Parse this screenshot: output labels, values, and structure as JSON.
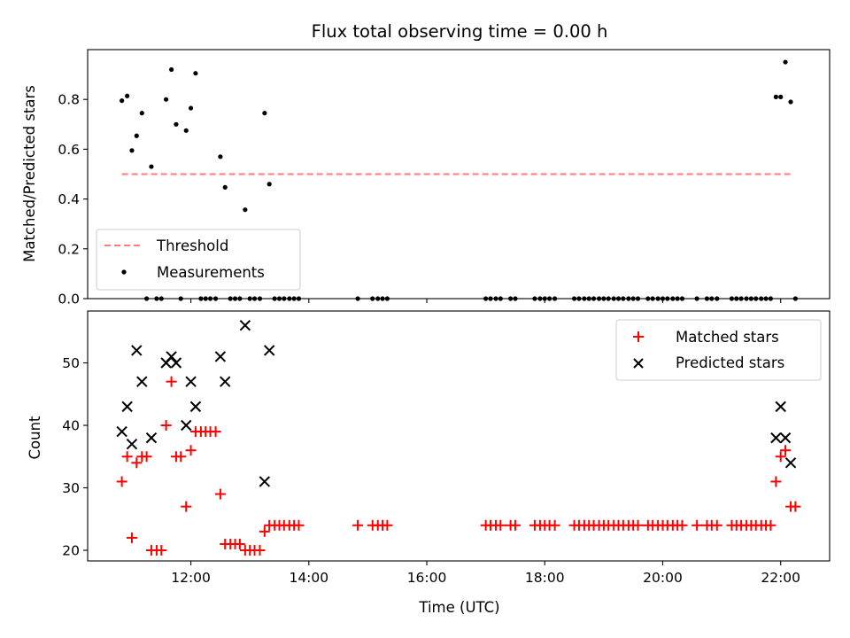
{
  "chart_data": {
    "type": "scatter",
    "title": "Flux total observing time = 0.00 h",
    "xlabel": "Time (UTC)",
    "x_ticks": [
      "12:00",
      "14:00",
      "16:00",
      "18:00",
      "20:00",
      "22:00"
    ],
    "x_tick_hours": [
      12,
      14,
      16,
      18,
      20,
      22
    ],
    "x_range_hours": [
      10.25,
      22.83
    ],
    "panels": [
      {
        "ylabel": "Matched/Predicted stars",
        "ylim": [
          0.0,
          1.0
        ],
        "yticks": [
          "0.0",
          "0.2",
          "0.4",
          "0.6",
          "0.8"
        ],
        "ytick_values": [
          0.0,
          0.2,
          0.4,
          0.6,
          0.8
        ],
        "legend_position": "lower-left",
        "series": [
          {
            "name": "Threshold",
            "type": "line",
            "style": "dashed",
            "color": "#ff7b7b",
            "points": [
              [
                10.83,
                0.5
              ],
              [
                22.17,
                0.5
              ]
            ]
          },
          {
            "name": "Measurements",
            "type": "scatter",
            "marker": "dot",
            "color": "#000000",
            "points": [
              [
                10.83,
                0.795
              ],
              [
                10.92,
                0.814
              ],
              [
                11.0,
                0.595
              ],
              [
                11.08,
                0.654
              ],
              [
                11.17,
                0.745
              ],
              [
                11.33,
                0.53
              ],
              [
                11.58,
                0.8
              ],
              [
                11.67,
                0.92
              ],
              [
                11.75,
                0.7
              ],
              [
                11.92,
                0.675
              ],
              [
                12.0,
                0.765
              ],
              [
                12.08,
                0.905
              ],
              [
                12.5,
                0.57
              ],
              [
                12.58,
                0.447
              ],
              [
                12.92,
                0.357
              ],
              [
                13.25,
                0.745
              ],
              [
                13.33,
                0.46
              ],
              [
                21.92,
                0.81
              ],
              [
                22.0,
                0.81
              ],
              [
                22.08,
                0.95
              ],
              [
                22.17,
                0.79
              ],
              [
                11.25,
                0.0
              ],
              [
                11.42,
                0.0
              ],
              [
                11.5,
                0.0
              ],
              [
                11.83,
                0.0
              ],
              [
                12.17,
                0.0
              ],
              [
                12.25,
                0.0
              ],
              [
                12.33,
                0.0
              ],
              [
                12.42,
                0.0
              ],
              [
                12.67,
                0.0
              ],
              [
                12.75,
                0.0
              ],
              [
                12.83,
                0.0
              ],
              [
                13.0,
                0.0
              ],
              [
                13.08,
                0.0
              ],
              [
                13.17,
                0.0
              ],
              [
                13.42,
                0.0
              ],
              [
                13.5,
                0.0
              ],
              [
                13.58,
                0.0
              ],
              [
                13.67,
                0.0
              ],
              [
                13.75,
                0.0
              ],
              [
                13.83,
                0.0
              ],
              [
                14.83,
                0.0
              ],
              [
                15.08,
                0.0
              ],
              [
                15.17,
                0.0
              ],
              [
                15.25,
                0.0
              ],
              [
                15.33,
                0.0
              ],
              [
                17.0,
                0.0
              ],
              [
                17.08,
                0.0
              ],
              [
                17.17,
                0.0
              ],
              [
                17.25,
                0.0
              ],
              [
                17.42,
                0.0
              ],
              [
                17.5,
                0.0
              ],
              [
                17.83,
                0.0
              ],
              [
                17.92,
                0.0
              ],
              [
                18.0,
                0.0
              ],
              [
                18.08,
                0.0
              ],
              [
                18.17,
                0.0
              ],
              [
                18.5,
                0.0
              ],
              [
                18.58,
                0.0
              ],
              [
                18.67,
                0.0
              ],
              [
                18.75,
                0.0
              ],
              [
                18.83,
                0.0
              ],
              [
                18.92,
                0.0
              ],
              [
                19.0,
                0.0
              ],
              [
                19.08,
                0.0
              ],
              [
                19.17,
                0.0
              ],
              [
                19.25,
                0.0
              ],
              [
                19.33,
                0.0
              ],
              [
                19.42,
                0.0
              ],
              [
                19.5,
                0.0
              ],
              [
                19.58,
                0.0
              ],
              [
                19.75,
                0.0
              ],
              [
                19.83,
                0.0
              ],
              [
                19.92,
                0.0
              ],
              [
                20.0,
                0.0
              ],
              [
                20.08,
                0.0
              ],
              [
                20.17,
                0.0
              ],
              [
                20.25,
                0.0
              ],
              [
                20.33,
                0.0
              ],
              [
                20.58,
                0.0
              ],
              [
                20.75,
                0.0
              ],
              [
                20.83,
                0.0
              ],
              [
                20.92,
                0.0
              ],
              [
                21.17,
                0.0
              ],
              [
                21.25,
                0.0
              ],
              [
                21.33,
                0.0
              ],
              [
                21.42,
                0.0
              ],
              [
                21.5,
                0.0
              ],
              [
                21.58,
                0.0
              ],
              [
                21.67,
                0.0
              ],
              [
                21.75,
                0.0
              ],
              [
                21.83,
                0.0
              ],
              [
                22.25,
                0.0
              ]
            ]
          }
        ]
      },
      {
        "ylabel": "Count",
        "ylim": [
          18.3,
          58.3
        ],
        "yticks": [
          "20",
          "30",
          "40",
          "50"
        ],
        "ytick_values": [
          20,
          30,
          40,
          50
        ],
        "legend_position": "upper-right",
        "series": [
          {
            "name": "Matched stars",
            "type": "scatter",
            "marker": "plus",
            "color": "#ff0000",
            "points": [
              [
                10.83,
                31
              ],
              [
                10.92,
                35
              ],
              [
                11.0,
                22
              ],
              [
                11.08,
                34
              ],
              [
                11.17,
                35
              ],
              [
                11.25,
                35
              ],
              [
                11.33,
                20
              ],
              [
                11.42,
                20
              ],
              [
                11.5,
                20
              ],
              [
                11.58,
                40
              ],
              [
                11.67,
                47
              ],
              [
                11.75,
                35
              ],
              [
                11.83,
                35
              ],
              [
                11.92,
                27
              ],
              [
                12.0,
                36
              ],
              [
                12.08,
                39
              ],
              [
                12.17,
                39
              ],
              [
                12.25,
                39
              ],
              [
                12.33,
                39
              ],
              [
                12.42,
                39
              ],
              [
                12.5,
                29
              ],
              [
                12.58,
                21
              ],
              [
                12.67,
                21
              ],
              [
                12.75,
                21
              ],
              [
                12.83,
                21
              ],
              [
                12.92,
                20
              ],
              [
                13.0,
                20
              ],
              [
                13.08,
                20
              ],
              [
                13.17,
                20
              ],
              [
                13.25,
                23
              ],
              [
                13.33,
                24
              ],
              [
                13.42,
                24
              ],
              [
                13.5,
                24
              ],
              [
                13.58,
                24
              ],
              [
                13.67,
                24
              ],
              [
                13.75,
                24
              ],
              [
                13.83,
                24
              ],
              [
                14.83,
                24
              ],
              [
                15.08,
                24
              ],
              [
                15.17,
                24
              ],
              [
                15.25,
                24
              ],
              [
                15.33,
                24
              ],
              [
                17.0,
                24
              ],
              [
                17.08,
                24
              ],
              [
                17.17,
                24
              ],
              [
                17.25,
                24
              ],
              [
                17.42,
                24
              ],
              [
                17.5,
                24
              ],
              [
                17.83,
                24
              ],
              [
                17.92,
                24
              ],
              [
                18.0,
                24
              ],
              [
                18.08,
                24
              ],
              [
                18.17,
                24
              ],
              [
                18.5,
                24
              ],
              [
                18.58,
                24
              ],
              [
                18.67,
                24
              ],
              [
                18.75,
                24
              ],
              [
                18.83,
                24
              ],
              [
                18.92,
                24
              ],
              [
                19.0,
                24
              ],
              [
                19.08,
                24
              ],
              [
                19.17,
                24
              ],
              [
                19.25,
                24
              ],
              [
                19.33,
                24
              ],
              [
                19.42,
                24
              ],
              [
                19.5,
                24
              ],
              [
                19.58,
                24
              ],
              [
                19.75,
                24
              ],
              [
                19.83,
                24
              ],
              [
                19.92,
                24
              ],
              [
                20.0,
                24
              ],
              [
                20.08,
                24
              ],
              [
                20.17,
                24
              ],
              [
                20.25,
                24
              ],
              [
                20.33,
                24
              ],
              [
                20.58,
                24
              ],
              [
                20.75,
                24
              ],
              [
                20.83,
                24
              ],
              [
                20.92,
                24
              ],
              [
                21.17,
                24
              ],
              [
                21.25,
                24
              ],
              [
                21.33,
                24
              ],
              [
                21.42,
                24
              ],
              [
                21.5,
                24
              ],
              [
                21.58,
                24
              ],
              [
                21.67,
                24
              ],
              [
                21.75,
                24
              ],
              [
                21.83,
                24
              ],
              [
                21.92,
                31
              ],
              [
                22.0,
                35
              ],
              [
                22.08,
                36
              ],
              [
                22.17,
                27
              ],
              [
                22.25,
                27
              ]
            ]
          },
          {
            "name": "Predicted stars",
            "type": "scatter",
            "marker": "x",
            "color": "#000000",
            "points": [
              [
                10.83,
                39
              ],
              [
                10.92,
                43
              ],
              [
                11.0,
                37
              ],
              [
                11.08,
                52
              ],
              [
                11.17,
                47
              ],
              [
                11.33,
                38
              ],
              [
                11.58,
                50
              ],
              [
                11.67,
                51
              ],
              [
                11.75,
                50
              ],
              [
                11.92,
                40
              ],
              [
                12.0,
                47
              ],
              [
                12.08,
                43
              ],
              [
                12.5,
                51
              ],
              [
                12.58,
                47
              ],
              [
                12.92,
                56
              ],
              [
                13.25,
                31
              ],
              [
                13.33,
                52
              ],
              [
                21.92,
                38
              ],
              [
                22.0,
                43
              ],
              [
                22.08,
                38
              ],
              [
                22.17,
                34
              ]
            ]
          }
        ]
      }
    ]
  }
}
